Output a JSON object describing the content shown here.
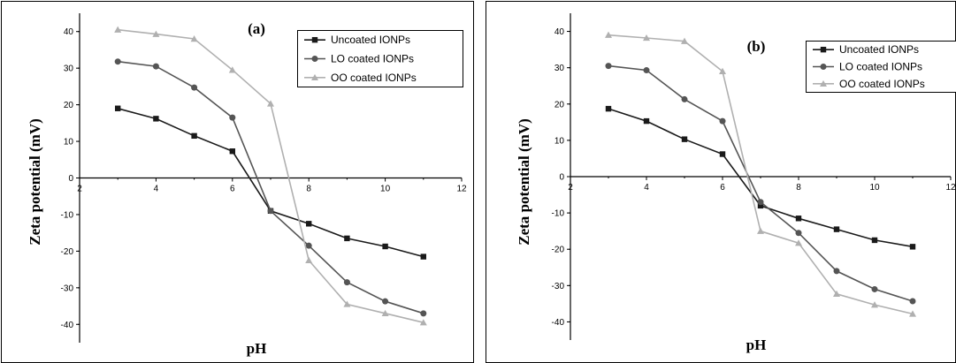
{
  "chart_data": [
    {
      "type": "line",
      "title": "(a)",
      "xlabel": "pH",
      "ylabel": "Zeta potential (mV)",
      "xlim": [
        2,
        12
      ],
      "ylim": [
        -45,
        45
      ],
      "x_ticks": [
        2,
        4,
        6,
        8,
        10,
        12
      ],
      "y_ticks": [
        40,
        30,
        20,
        10,
        0,
        -10,
        -20,
        -30,
        -40
      ],
      "x": [
        3,
        4,
        5,
        6,
        7,
        8,
        9,
        10,
        11
      ],
      "legend_position": "top-right",
      "series": [
        {
          "name": "Uncoated IONPs",
          "marker": "square",
          "color": "#1a1a1a",
          "values": [
            19,
            16.2,
            11.5,
            7.3,
            -9,
            -12.5,
            -16.5,
            -18.7,
            -21.5
          ]
        },
        {
          "name": "LO coated IONPs",
          "marker": "circle",
          "color": "#555555",
          "values": [
            31.8,
            30.5,
            24.7,
            16.5,
            -9,
            -18.5,
            -28.5,
            -33.7,
            -37
          ]
        },
        {
          "name": "OO coated IONPs",
          "marker": "triangle",
          "color": "#b0b0b0",
          "values": [
            40.5,
            39.3,
            38,
            29.5,
            20.3,
            -22.5,
            -34.5,
            -37,
            -39.5
          ]
        }
      ]
    },
    {
      "type": "line",
      "title": "(b)",
      "xlabel": "pH",
      "ylabel": "Zeta potential (mV)",
      "xlim": [
        2,
        12
      ],
      "ylim": [
        -45,
        45
      ],
      "x_ticks": [
        2,
        4,
        6,
        8,
        10,
        12
      ],
      "y_ticks": [
        40,
        30,
        20,
        10,
        0,
        -10,
        -20,
        -30,
        -40
      ],
      "x": [
        3,
        4,
        5,
        6,
        7,
        8,
        9,
        10,
        11
      ],
      "legend_position": "top-right",
      "series": [
        {
          "name": "Uncoated IONPs",
          "marker": "square",
          "color": "#1a1a1a",
          "values": [
            18.7,
            15.3,
            10.3,
            6.2,
            -8,
            -11.5,
            -14.5,
            -17.5,
            -19.3
          ]
        },
        {
          "name": "LO coated IONPs",
          "marker": "circle",
          "color": "#555555",
          "values": [
            30.5,
            29.3,
            21.3,
            15.3,
            -7,
            -15.5,
            -26,
            -31,
            -34.3
          ]
        },
        {
          "name": "OO coated IONPs",
          "marker": "triangle",
          "color": "#b0b0b0",
          "values": [
            39,
            38.2,
            37.3,
            29,
            -15,
            -18.3,
            -32.3,
            -35.3,
            -37.8
          ]
        }
      ]
    }
  ]
}
